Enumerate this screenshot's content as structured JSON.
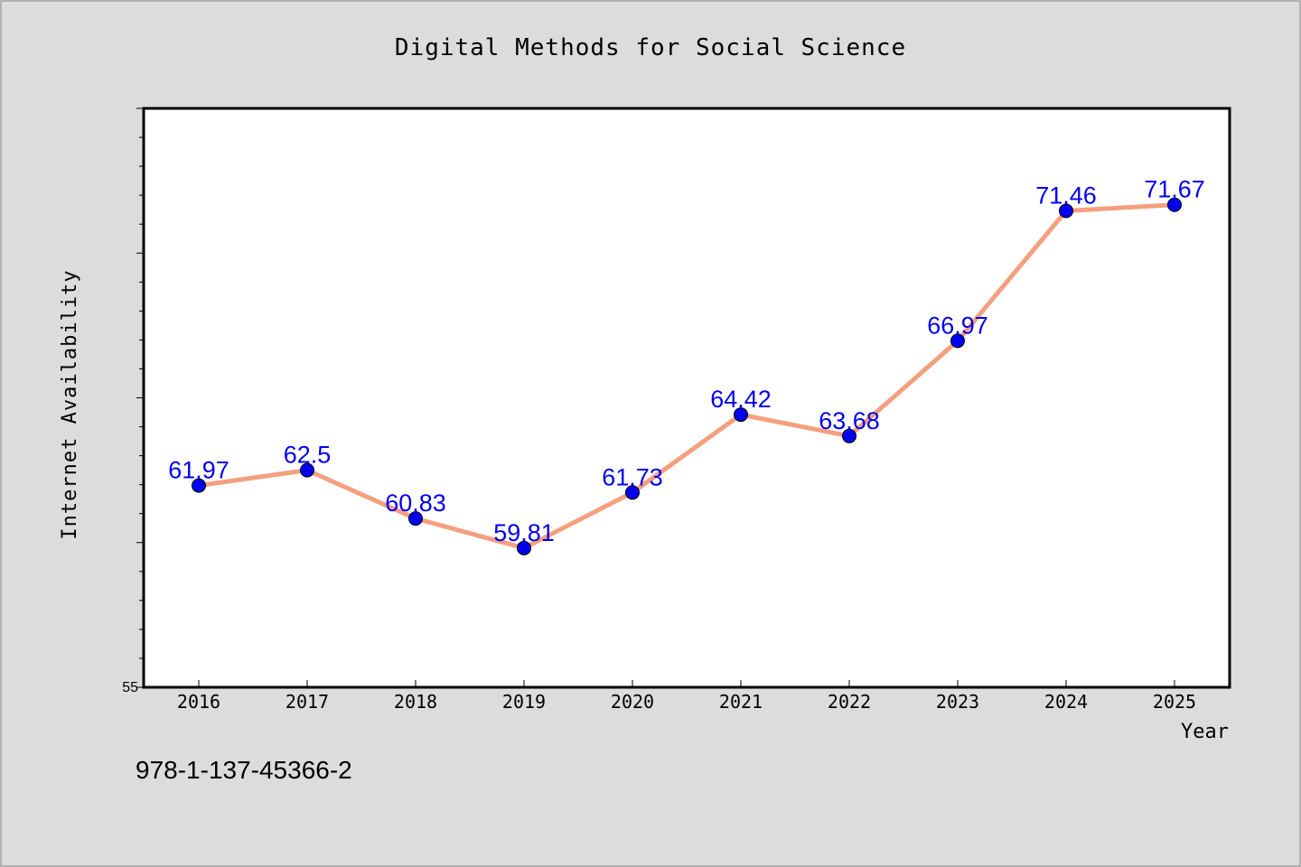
{
  "chart_data": {
    "type": "line",
    "title": "Digital Methods for Social Science",
    "xlabel": "Year",
    "ylabel": "Internet Availability",
    "categories": [
      "2016",
      "2017",
      "2018",
      "2019",
      "2020",
      "2021",
      "2022",
      "2023",
      "2024",
      "2025"
    ],
    "series": [
      {
        "values": [
          61.97,
          62.5,
          60.83,
          59.81,
          61.73,
          64.42,
          63.68,
          66.97,
          71.46,
          71.67
        ],
        "labels": [
          "61.97",
          "62.5",
          "60.83",
          "59.81",
          "61.73",
          "64.42",
          "63.68",
          "66.97",
          "71.46",
          "71.67"
        ]
      }
    ],
    "ylim": [
      55,
      75
    ],
    "ytick_labels": [
      "55"
    ],
    "grid": false,
    "colors": {
      "line": "#f4a07f",
      "marker": "#0000ee",
      "data_label": "#0000ee",
      "plot_bg": "#ffffff",
      "page_bg": "#dcdcdc"
    }
  },
  "footer": {
    "isbn": "978-1-137-45366-2"
  }
}
